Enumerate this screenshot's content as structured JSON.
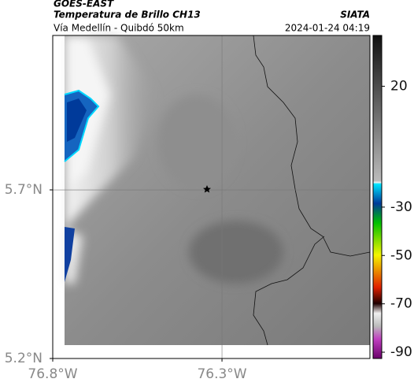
{
  "header": {
    "source": "GOES-EAST",
    "title": "Temperatura de Brillo CH13",
    "subtitle": "Vía Medellín - Quibdó 50km",
    "org": "SIATA",
    "datetime": "2024-01-24 04:19"
  },
  "map": {
    "lonlim": [
      -76.8,
      -75.863
    ],
    "latlim": [
      5.2,
      6.158
    ],
    "lat_ticks": [
      {
        "value": 5.7,
        "label": "5.7°N"
      },
      {
        "value": 5.2,
        "label": "5.2°N"
      }
    ],
    "lon_ticks": [
      {
        "value": -76.8,
        "label": "76.8°W"
      },
      {
        "value": -76.3,
        "label": "76.3°W"
      }
    ],
    "colorbar": {
      "lim": [
        -92.6,
        41
      ],
      "ticks": [
        20,
        -30,
        -50,
        -70,
        -90
      ]
    }
  }
}
